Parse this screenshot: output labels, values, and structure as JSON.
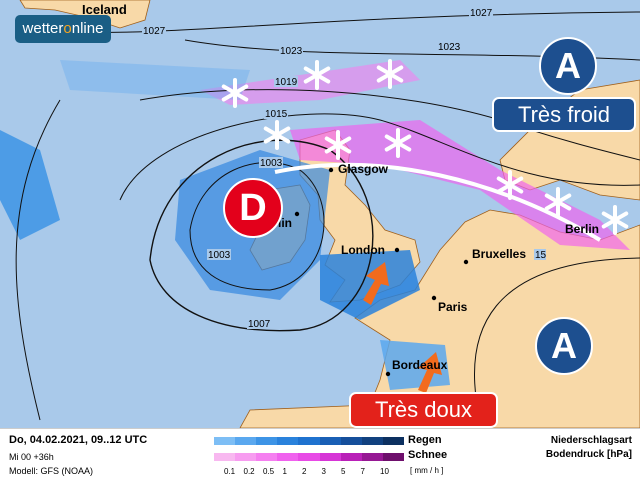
{
  "logo": {
    "text_a": "wetter",
    "text_b": "o",
    "text_c": "nline"
  },
  "cities": {
    "iceland": "Iceland",
    "glasgow": "Glasgow",
    "dublin": "lin",
    "london": "London",
    "bruxelles": "Bruxelles",
    "paris": "Paris",
    "bordeaux": "Bordeaux",
    "berlin": "Berlin"
  },
  "isobars": {
    "a": "1027",
    "b": "1027",
    "c": "1023",
    "d": "1023",
    "e": "1019",
    "f": "1015",
    "g": "1003",
    "h": "1003",
    "i": "1007",
    "j": "15"
  },
  "systems": {
    "high_label": "A",
    "low_label": "D",
    "cold_label": "Très froid",
    "warm_label": "Très doux"
  },
  "colors": {
    "sea": "#a9c9ea",
    "land": "#f8d9a8",
    "rain": "#2f86e0",
    "snow": "#f06cf0",
    "high": "#1d4f8f",
    "low": "#e3001b",
    "warm_arrow": "#f26b1d"
  },
  "legend": {
    "date": "Do, 04.02.2021, 09..12 UTC",
    "run": "Mi 00 +36h",
    "model": "Modell: GFS (NOAA)",
    "rain": "Regen",
    "snow": "Schnee",
    "unit": "[ mm / h ]",
    "type": "Niederschlagsart",
    "pressure": "Bodendruck [hPa]",
    "ticks": [
      "0.1",
      "0.2",
      "0.5",
      "1",
      "2",
      "3",
      "5",
      "7",
      "10"
    ],
    "rain_colors": [
      "#7dbef5",
      "#5aa8ef",
      "#3d94e6",
      "#2a82dc",
      "#1f72cf",
      "#195fb5",
      "#154f9b",
      "#11417f",
      "#0c3060"
    ],
    "snow_colors": [
      "#f8b8f0",
      "#f79cf0",
      "#f57ff0",
      "#f061ee",
      "#e84ae6",
      "#d635d6",
      "#b920b8",
      "#961894",
      "#6e0f6c"
    ]
  }
}
